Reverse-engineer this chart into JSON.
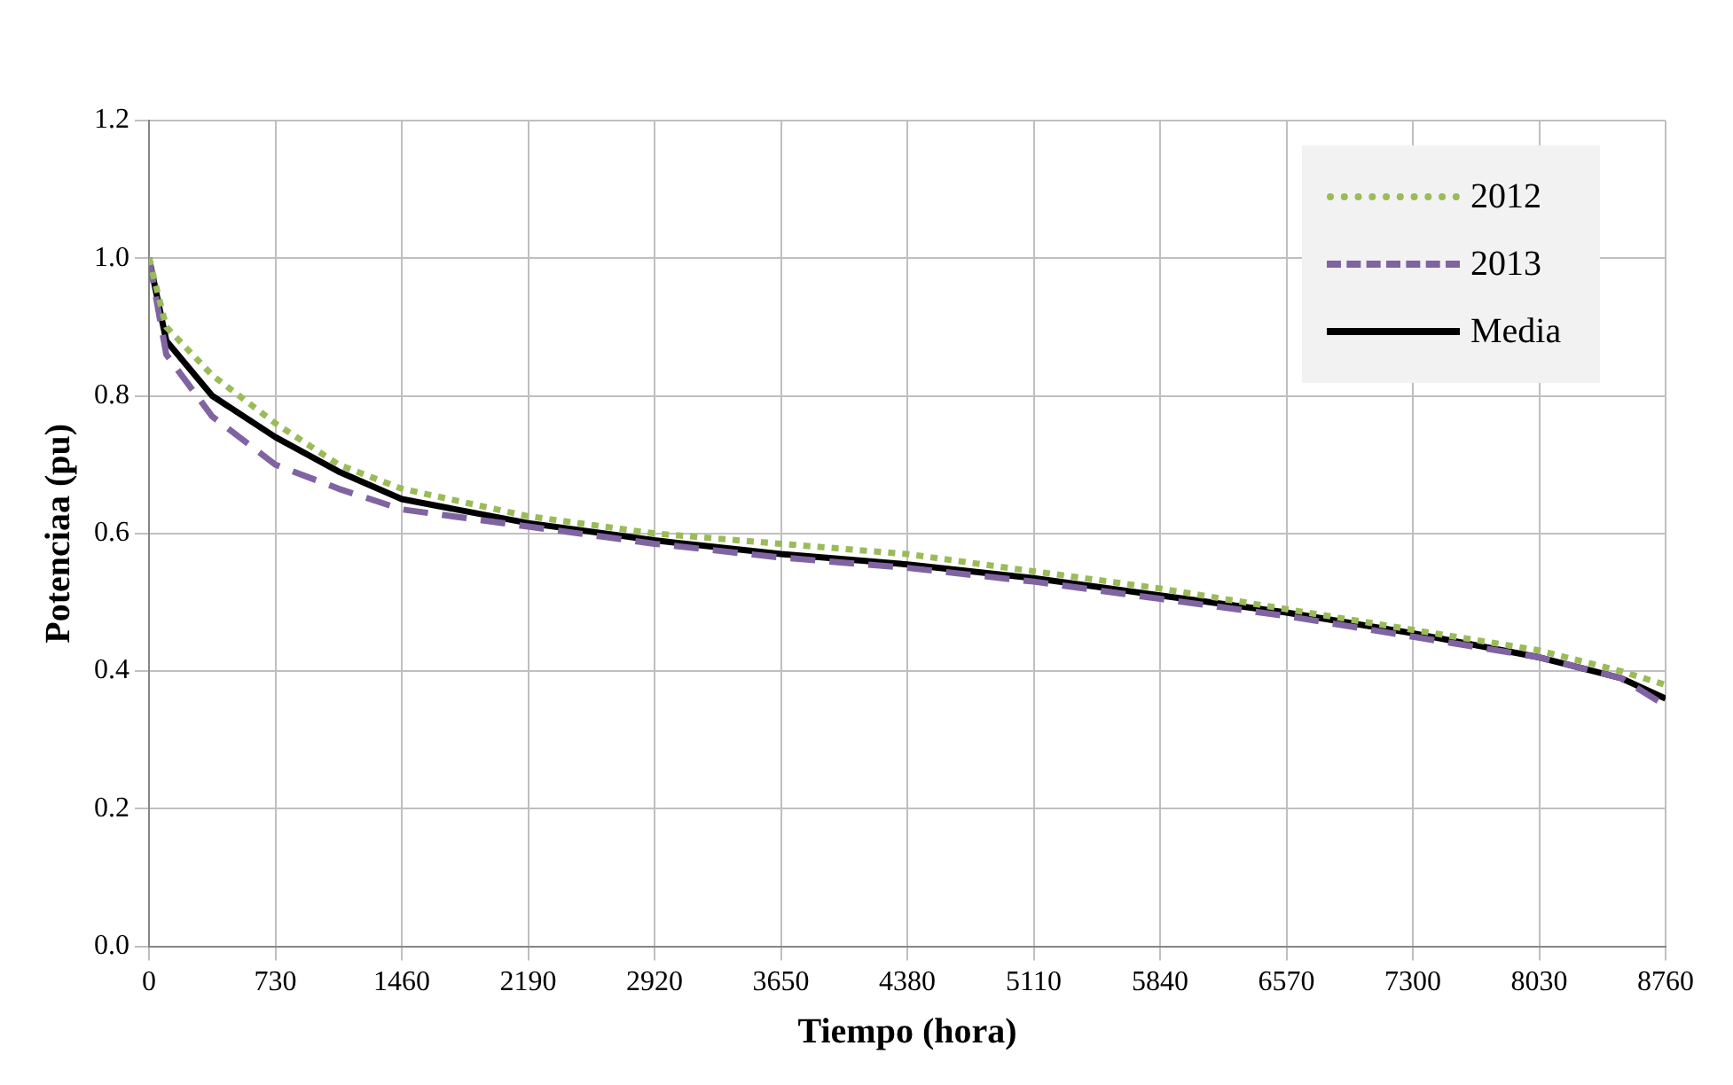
{
  "chart_data": {
    "type": "line",
    "xlabel": "Tiempo (hora)",
    "ylabel": "Potenciaa (pu)",
    "x": [
      0,
      100,
      365,
      730,
      1095,
      1460,
      2190,
      2920,
      3650,
      4380,
      5110,
      5840,
      6570,
      7300,
      8030,
      8500,
      8760
    ],
    "series": [
      {
        "name": "2012",
        "color": "#9bbb59",
        "line_style": "dotted",
        "values": [
          1.0,
          0.9,
          0.83,
          0.76,
          0.7,
          0.665,
          0.625,
          0.6,
          0.585,
          0.57,
          0.545,
          0.52,
          0.49,
          0.46,
          0.43,
          0.4,
          0.38
        ]
      },
      {
        "name": "2013",
        "color": "#8064a2",
        "line_style": "dashed",
        "values": [
          1.0,
          0.86,
          0.77,
          0.7,
          0.665,
          0.635,
          0.61,
          0.585,
          0.565,
          0.55,
          0.53,
          0.505,
          0.48,
          0.45,
          0.42,
          0.39,
          0.35
        ]
      },
      {
        "name": "Media",
        "color": "#000000",
        "line_style": "solid",
        "values": [
          1.0,
          0.88,
          0.8,
          0.74,
          0.69,
          0.65,
          0.615,
          0.59,
          0.57,
          0.555,
          0.535,
          0.51,
          0.485,
          0.455,
          0.42,
          0.39,
          0.36
        ]
      }
    ],
    "xlim": [
      0,
      8760
    ],
    "xticks": [
      0,
      730,
      1460,
      2190,
      2920,
      3650,
      4380,
      5110,
      5840,
      6570,
      7300,
      8030,
      8760
    ],
    "ylim": [
      0,
      1.2
    ],
    "yticks": [
      {
        "value": 0,
        "label": "0.0"
      },
      0.2,
      0.4,
      0.6,
      0.8,
      {
        "value": 1,
        "label": "1.0"
      },
      1.2
    ],
    "grid": true,
    "legend": "top right",
    "marker": "none"
  }
}
